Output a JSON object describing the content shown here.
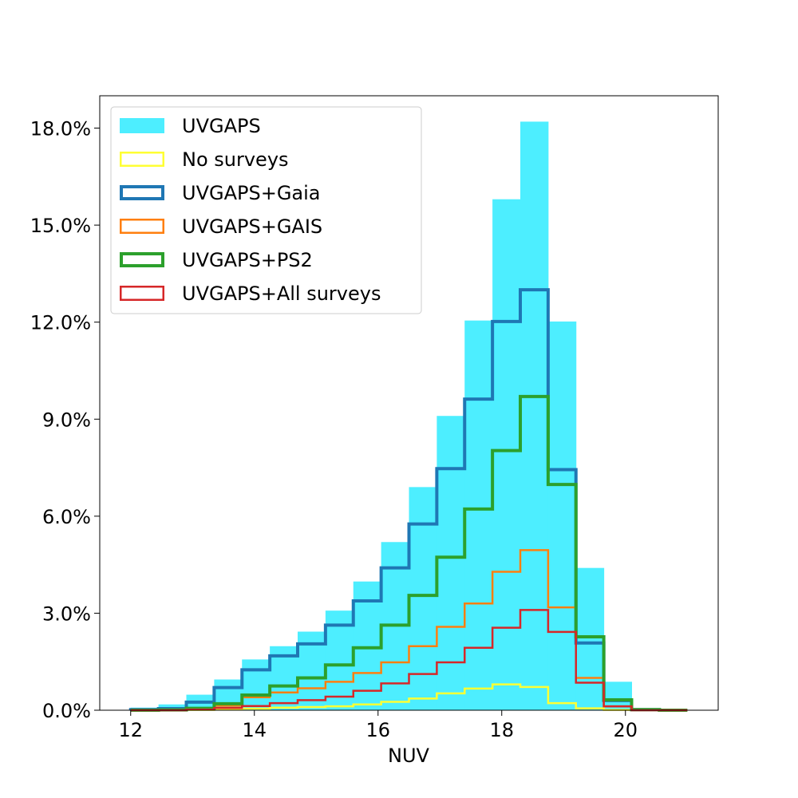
{
  "chart_data": {
    "type": "histogram",
    "xlabel": "NUV",
    "ylabel": "",
    "title": "",
    "xlim": [
      11.5,
      21.5
    ],
    "ylim": [
      0,
      19
    ],
    "x_ticks": [
      12,
      14,
      16,
      18,
      20
    ],
    "x_tick_labels": [
      "12",
      "14",
      "16",
      "18",
      "20"
    ],
    "y_ticks": [
      0,
      3,
      6,
      9,
      12,
      15,
      18
    ],
    "y_tick_labels": [
      "0.0%",
      "3.0%",
      "6.0%",
      "9.0%",
      "12.0%",
      "15.0%",
      "18.0%"
    ],
    "bin_edges": [
      12.0,
      12.45,
      12.9,
      13.35,
      13.8,
      14.25,
      14.7,
      15.15,
      15.6,
      16.05,
      16.5,
      16.95,
      17.4,
      17.85,
      18.3,
      18.75,
      19.2,
      19.65,
      20.1,
      20.55,
      21.0
    ],
    "legend_position": "upper-left",
    "series": [
      {
        "name": "UVGAPS",
        "style": "filled",
        "color": "#4DEEFF",
        "line_width": 0,
        "values": [
          0.08,
          0.18,
          0.48,
          0.95,
          1.57,
          1.98,
          2.43,
          3.08,
          3.98,
          5.2,
          6.9,
          9.1,
          12.05,
          15.8,
          18.2,
          12.02,
          4.4,
          0.88,
          0.04,
          0.0
        ]
      },
      {
        "name": "No surveys",
        "style": "step",
        "color": "#FFFF33",
        "line_width": 2.5,
        "values": [
          0.0,
          0.0,
          0.01,
          0.02,
          0.05,
          0.08,
          0.1,
          0.12,
          0.18,
          0.26,
          0.36,
          0.52,
          0.67,
          0.8,
          0.72,
          0.22,
          0.06,
          0.01,
          0.0,
          0.0
        ]
      },
      {
        "name": "UVGAPS+Gaia",
        "style": "step",
        "color": "#1F77B4",
        "line_width": 4,
        "values": [
          0.02,
          0.05,
          0.25,
          0.7,
          1.25,
          1.68,
          2.05,
          2.63,
          3.38,
          4.4,
          5.76,
          7.47,
          9.62,
          12.02,
          13.0,
          7.44,
          2.08,
          0.3,
          0.02,
          0.0
        ]
      },
      {
        "name": "UVGAPS+GAIS",
        "style": "step",
        "color": "#FF7F0E",
        "line_width": 2.5,
        "values": [
          0.0,
          0.01,
          0.04,
          0.14,
          0.4,
          0.55,
          0.68,
          0.88,
          1.15,
          1.48,
          1.98,
          2.58,
          3.3,
          4.28,
          4.95,
          3.18,
          1.0,
          0.12,
          0.01,
          0.0
        ]
      },
      {
        "name": "UVGAPS+PS2",
        "style": "step",
        "color": "#2CA02C",
        "line_width": 4,
        "values": [
          0.0,
          0.01,
          0.06,
          0.2,
          0.47,
          0.75,
          1.0,
          1.4,
          1.93,
          2.63,
          3.55,
          4.73,
          6.22,
          8.03,
          9.7,
          6.98,
          2.27,
          0.32,
          0.02,
          0.0
        ]
      },
      {
        "name": "UVGAPS+All surveys",
        "style": "step",
        "color": "#D62728",
        "line_width": 2.5,
        "values": [
          0.0,
          0.0,
          0.02,
          0.07,
          0.13,
          0.22,
          0.31,
          0.42,
          0.6,
          0.83,
          1.12,
          1.48,
          1.93,
          2.55,
          3.1,
          2.42,
          0.85,
          0.12,
          0.0,
          0.0
        ]
      }
    ]
  }
}
